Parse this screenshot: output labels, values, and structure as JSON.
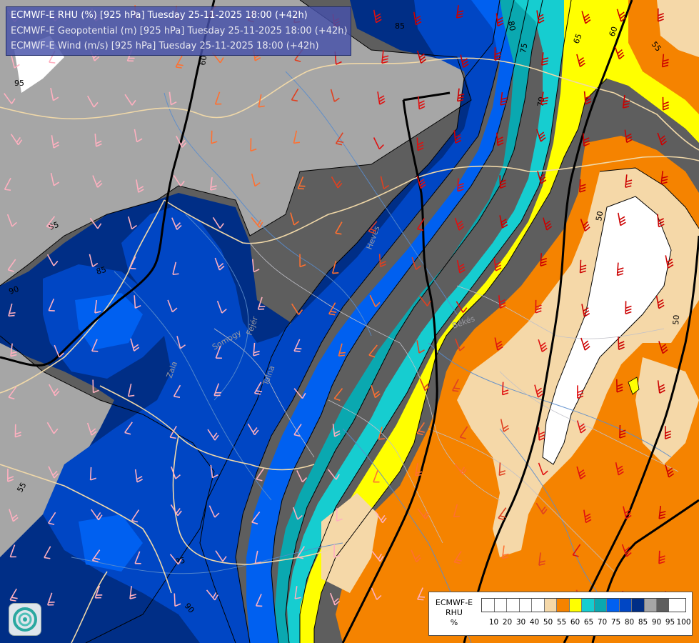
{
  "header": {
    "line1": "ECMWF-E RHU (%) [925 hPa] Tuesday 25-11-2025 18:00 (+42h)",
    "line2": "ECMWF-E Geopotential (m) [925 hPa] Tuesday 25-11-2025 18:00 (+42h)",
    "line3": "ECMWF-E Wind (m/s) [925 hPa] Tuesday 25-11-2025 18:00 (+42h)"
  },
  "colorbar": {
    "title_lines": [
      "ECMWF-E",
      "RHU",
      "%"
    ],
    "colors": [
      "#ffffff",
      "#ffffff",
      "#ffffff",
      "#ffffff",
      "#ffffff",
      "#f5d8a8",
      "#f58300",
      "#ffff00",
      "#16cdd0",
      "#0aa8b0",
      "#0060f0",
      "#0046c4",
      "#002e86",
      "#a6a6a6",
      "#5e5e5e"
    ],
    "ticks": [
      "10",
      "20",
      "30",
      "40",
      "50",
      "55",
      "60",
      "65",
      "70",
      "75",
      "80",
      "85",
      "90",
      "95",
      "100"
    ]
  },
  "palette": {
    "white": "#ffffff",
    "tan": "#f5d8a8",
    "orange": "#f58300",
    "yellow": "#ffff00",
    "cyan": "#16cdd0",
    "teal": "#0aa8b0",
    "blue": "#0060f0",
    "mid_blue": "#0046c4",
    "navy": "#002e86",
    "light_grey": "#a6a6a6",
    "dark_grey": "#5e5e5e"
  },
  "contour_labels": [
    "85",
    "80",
    "75",
    "70",
    "65",
    "60",
    "55",
    "50",
    "95",
    "90",
    "85",
    "55",
    "50",
    "50",
    "85",
    "90",
    "95",
    "60"
  ],
  "place_labels": [
    "Heves",
    "Békés",
    "Zala",
    "Somogy",
    "Tolna",
    "Fejér"
  ],
  "icons": [
    "ecmwf-logo-icon",
    "wind-barb-icon"
  ]
}
